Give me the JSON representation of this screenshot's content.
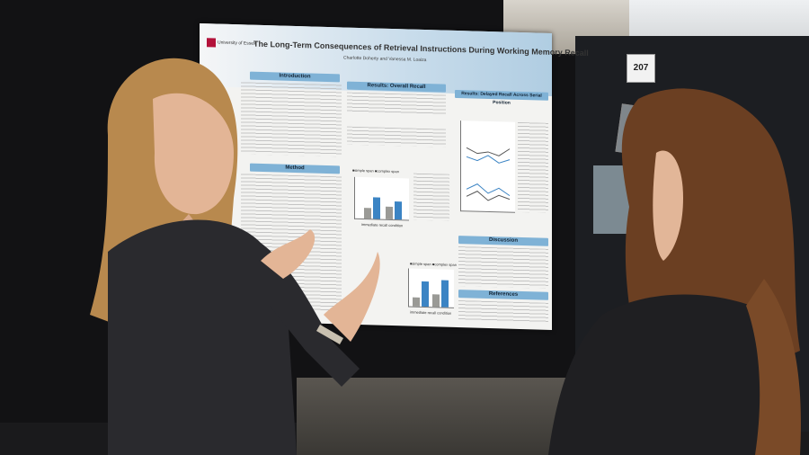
{
  "poster": {
    "logo_text": "University of Essex",
    "title": "The Long-Term Consequences of Retrieval Instructions During Working Memory Recall",
    "authors": "Charlotte Doherty and Vanessa M. Loaiza",
    "sections": {
      "introduction": "Introduction",
      "method": "Method",
      "results_overall": "Results: Overall Recall",
      "results_delayed": "Results: Delayed Recall Across Serial Position",
      "discussion": "Discussion",
      "references": "References"
    },
    "chart_legend_1": "■simple span ■complex span",
    "chart_legend_2": "■simple span ■complex span",
    "axis_label_1": "immediate recall condition",
    "axis_label_2": "immediate recall condition"
  },
  "board_number": "207",
  "colors": {
    "poster_header": "#b0cde2",
    "section_bar": "#7fb2d6",
    "bar_light": "#9a9a96",
    "bar_blue": "#3b84c4",
    "wall": "#121214"
  }
}
